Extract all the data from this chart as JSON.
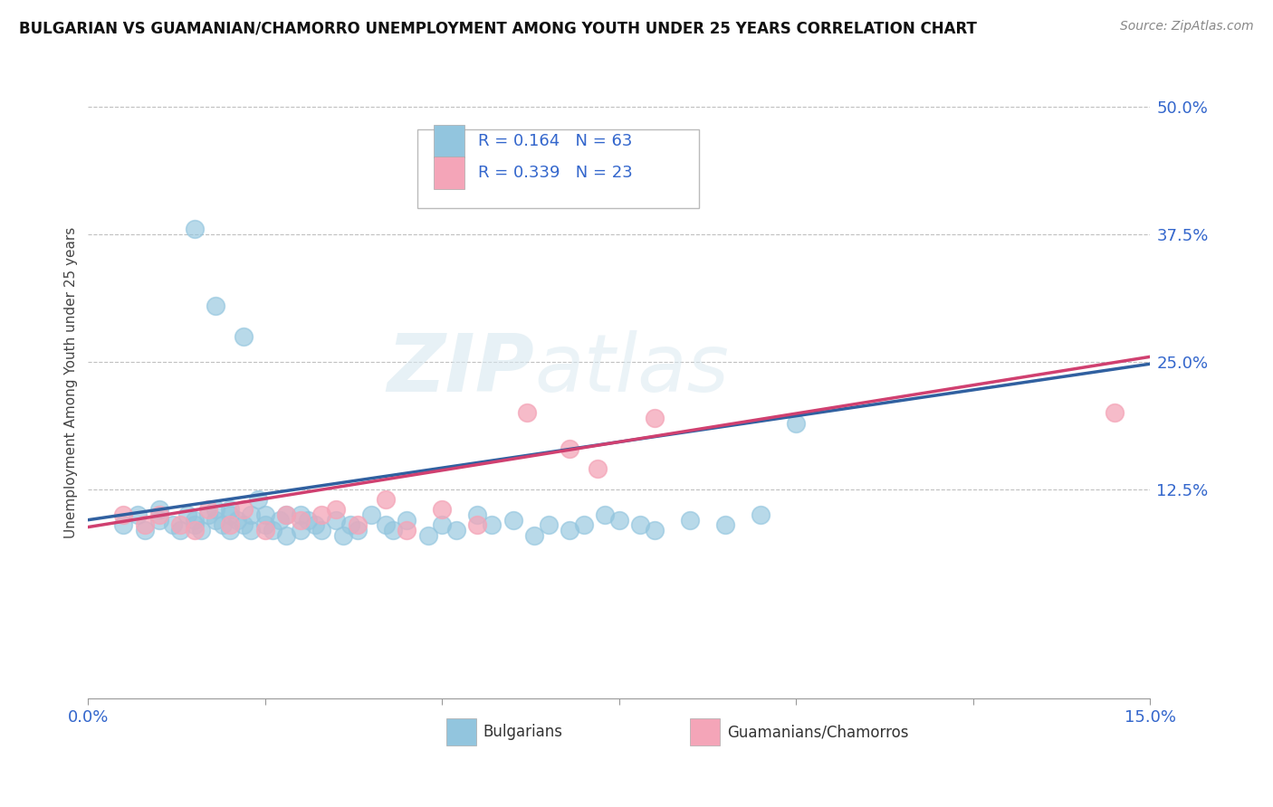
{
  "title": "BULGARIAN VS GUAMANIAN/CHAMORRO UNEMPLOYMENT AMONG YOUTH UNDER 25 YEARS CORRELATION CHART",
  "source": "Source: ZipAtlas.com",
  "ylabel": "Unemployment Among Youth under 25 years",
  "xlim": [
    0.0,
    0.15
  ],
  "ylim": [
    -0.08,
    0.54
  ],
  "ytick_labels_right": [
    "12.5%",
    "25.0%",
    "37.5%",
    "50.0%"
  ],
  "ytick_values_right": [
    0.125,
    0.25,
    0.375,
    0.5
  ],
  "R_blue": 0.164,
  "N_blue": 63,
  "R_pink": 0.339,
  "N_pink": 23,
  "legend_label_blue": "Bulgarians",
  "legend_label_pink": "Guamanians/Chamorros",
  "blue_color": "#92c5de",
  "pink_color": "#f4a5b8",
  "blue_line_color": "#3060a0",
  "pink_line_color": "#d04070",
  "watermark_zip": "ZIP",
  "watermark_atlas": "atlas",
  "blue_scatter_x": [
    0.005,
    0.007,
    0.008,
    0.01,
    0.01,
    0.012,
    0.013,
    0.014,
    0.015,
    0.015,
    0.016,
    0.017,
    0.018,
    0.018,
    0.019,
    0.02,
    0.02,
    0.02,
    0.021,
    0.022,
    0.023,
    0.023,
    0.024,
    0.025,
    0.025,
    0.026,
    0.027,
    0.028,
    0.028,
    0.03,
    0.03,
    0.031,
    0.032,
    0.033,
    0.035,
    0.036,
    0.037,
    0.038,
    0.04,
    0.042,
    0.043,
    0.045,
    0.048,
    0.05,
    0.052,
    0.055,
    0.057,
    0.06,
    0.063,
    0.065,
    0.068,
    0.07,
    0.073,
    0.075,
    0.078,
    0.08,
    0.085,
    0.09,
    0.095,
    0.1,
    0.015,
    0.018,
    0.022
  ],
  "blue_scatter_y": [
    0.09,
    0.1,
    0.085,
    0.095,
    0.105,
    0.09,
    0.085,
    0.1,
    0.095,
    0.09,
    0.085,
    0.1,
    0.095,
    0.105,
    0.09,
    0.085,
    0.1,
    0.105,
    0.095,
    0.09,
    0.085,
    0.1,
    0.115,
    0.09,
    0.1,
    0.085,
    0.095,
    0.08,
    0.1,
    0.085,
    0.1,
    0.095,
    0.09,
    0.085,
    0.095,
    0.08,
    0.09,
    0.085,
    0.1,
    0.09,
    0.085,
    0.095,
    0.08,
    0.09,
    0.085,
    0.1,
    0.09,
    0.095,
    0.08,
    0.09,
    0.085,
    0.09,
    0.1,
    0.095,
    0.09,
    0.085,
    0.095,
    0.09,
    0.1,
    0.19,
    0.38,
    0.305,
    0.275
  ],
  "pink_scatter_x": [
    0.005,
    0.008,
    0.01,
    0.013,
    0.015,
    0.017,
    0.02,
    0.022,
    0.025,
    0.028,
    0.03,
    0.033,
    0.035,
    0.038,
    0.042,
    0.045,
    0.05,
    0.055,
    0.062,
    0.068,
    0.072,
    0.08,
    0.145
  ],
  "pink_scatter_y": [
    0.1,
    0.09,
    0.1,
    0.09,
    0.085,
    0.105,
    0.09,
    0.105,
    0.085,
    0.1,
    0.095,
    0.1,
    0.105,
    0.09,
    0.115,
    0.085,
    0.105,
    0.09,
    0.2,
    0.165,
    0.145,
    0.195,
    0.2
  ],
  "blue_trendline_x0": 0.0,
  "blue_trendline_y0": 0.095,
  "blue_trendline_x1": 0.15,
  "blue_trendline_y1": 0.248,
  "pink_trendline_x0": 0.0,
  "pink_trendline_y0": 0.088,
  "pink_trendline_x1": 0.15,
  "pink_trendline_y1": 0.255
}
